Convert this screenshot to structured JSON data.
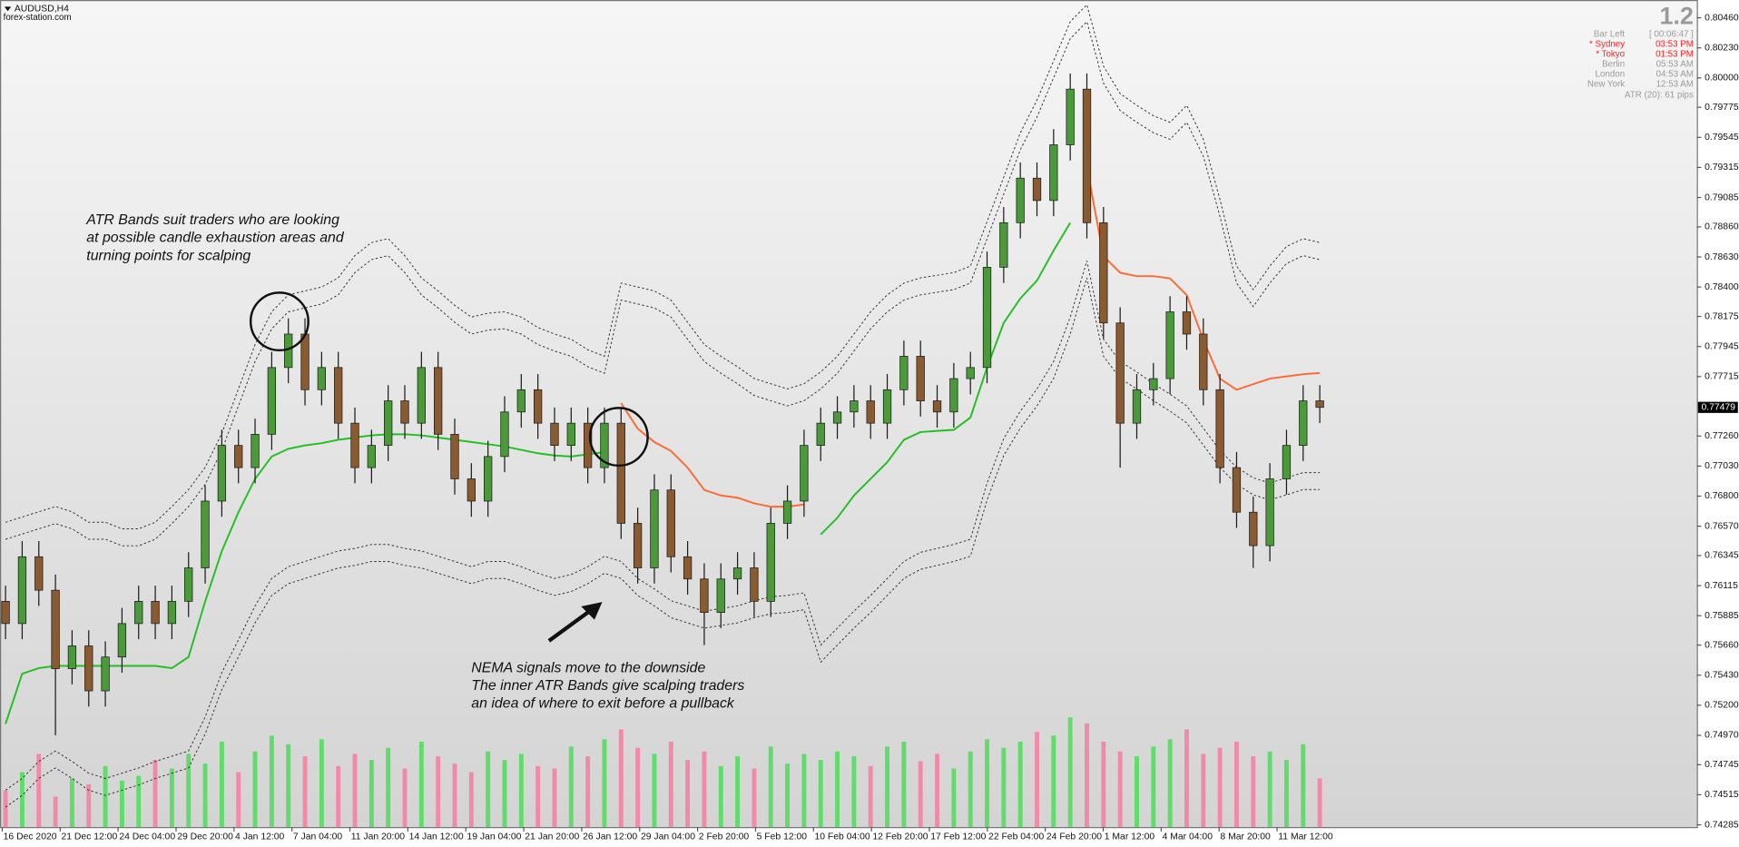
{
  "chart_data": {
    "type": "candlestick",
    "title": "AUDUSD,H4",
    "subtitle": "forex-station.com",
    "x_labels": [
      "16 Dec 2020",
      "21 Dec 12:00",
      "24 Dec 04:00",
      "29 Dec 20:00",
      "4 Jan 12:00",
      "7 Jan 04:00",
      "11 Jan 20:00",
      "14 Jan 12:00",
      "19 Jan 04:00",
      "21 Jan 20:00",
      "26 Jan 12:00",
      "29 Jan 04:00",
      "2 Feb 20:00",
      "5 Feb 12:00",
      "10 Feb 04:00",
      "12 Feb 20:00",
      "17 Feb 12:00",
      "22 Feb 04:00",
      "24 Feb 20:00",
      "1 Mar 12:00",
      "4 Mar 04:00",
      "8 Mar 20:00",
      "11 Mar 12:00"
    ],
    "ylim": [
      0.74268,
      0.80596
    ],
    "yticks": [
      {
        "value": 0.8046,
        "label": "0.80460"
      },
      {
        "value": 0.8023,
        "label": "0.80230"
      },
      {
        "value": 0.8,
        "label": "0.80000"
      },
      0.79775,
      0.79545,
      0.79315,
      0.79085,
      {
        "value": 0.7886,
        "label": "0.78860"
      },
      {
        "value": 0.7863,
        "label": "0.78630"
      },
      {
        "value": 0.784,
        "label": "0.78400"
      },
      0.78175,
      0.77945,
      0.77715,
      {
        "value": 0.7726,
        "label": "0.77260"
      },
      {
        "value": 0.7703,
        "label": "0.77030"
      },
      {
        "value": 0.768,
        "label": "0.76800"
      },
      {
        "value": 0.7657,
        "label": "0.76570"
      },
      0.76345,
      0.76115,
      0.75885,
      {
        "value": 0.7566,
        "label": "0.75660"
      },
      {
        "value": 0.7543,
        "label": "0.75430"
      },
      {
        "value": 0.752,
        "label": "0.75200"
      },
      {
        "value": 0.7497,
        "label": "0.74970"
      },
      0.74745,
      0.74515,
      0.74285
    ],
    "last_price": 0.77479,
    "bull_color": "#4a9a3a",
    "bear_color": "#8a5a30",
    "wick_color": "#1a1a1a",
    "open": [
      0.75995,
      0.75825,
      0.76336,
      0.7608,
      0.7548,
      0.75654,
      0.7531,
      0.75569,
      0.75825,
      0.75995,
      0.75825,
      0.75995,
      0.76251,
      0.76762,
      0.77188,
      0.77018,
      0.77273,
      0.77784,
      0.7804,
      0.77614,
      0.77784,
      0.77358,
      0.77018,
      0.77188,
      0.77529,
      0.77358,
      0.77784,
      0.77273,
      0.76932,
      0.76762,
      0.77103,
      0.77444,
      0.77614,
      0.77358,
      0.77188,
      0.77358,
      0.77018,
      0.77358,
      0.76592,
      0.76251,
      0.76847,
      0.76336,
      0.76166,
      0.7591,
      0.76166,
      0.76251,
      0.75995,
      0.76592,
      0.76762,
      0.77188,
      0.77358,
      0.77444,
      0.77529,
      0.77358,
      0.77614,
      0.7787,
      0.77529,
      0.77444,
      0.77699,
      0.77784,
      0.78551,
      0.78892,
      0.79233,
      0.79062,
      0.79488,
      0.79914,
      0.78892,
      0.78125,
      0.77358,
      0.77614,
      0.77699,
      0.7821,
      0.7804,
      0.77614,
      0.77018,
      0.76677,
      0.76421,
      0.76932,
      0.77188,
      0.77529
    ],
    "high": [
      0.76115,
      0.76456,
      0.76456,
      0.762,
      0.75774,
      0.75774,
      0.75689,
      0.75945,
      0.76115,
      0.76115,
      0.76115,
      0.76371,
      0.76882,
      0.77308,
      0.77308,
      0.77393,
      0.77904,
      0.7816,
      0.7816,
      0.77904,
      0.77904,
      0.77478,
      0.77308,
      0.77649,
      0.77649,
      0.77904,
      0.77904,
      0.77393,
      0.77052,
      0.77223,
      0.77564,
      0.77734,
      0.77734,
      0.77478,
      0.77478,
      0.77478,
      0.77478,
      0.77478,
      0.76712,
      0.76967,
      0.76967,
      0.76456,
      0.76286,
      0.76286,
      0.76371,
      0.76371,
      0.76712,
      0.76882,
      0.77308,
      0.77478,
      0.77564,
      0.77649,
      0.77649,
      0.77734,
      0.7799,
      0.7799,
      0.77649,
      0.77819,
      0.77904,
      0.78671,
      0.79012,
      0.79353,
      0.79353,
      0.79608,
      0.80034,
      0.80034,
      0.79012,
      0.78245,
      0.77734,
      0.77819,
      0.7833,
      0.7833,
      0.7816,
      0.77734,
      0.77138,
      0.76797,
      0.77052,
      0.77308,
      0.77649,
      0.77649
    ],
    "low": [
      0.75705,
      0.75705,
      0.7596,
      0.7497,
      0.7536,
      0.7519,
      0.7519,
      0.75449,
      0.75705,
      0.75705,
      0.75705,
      0.75875,
      0.76131,
      0.76642,
      0.76898,
      0.76898,
      0.77153,
      0.77664,
      0.77494,
      0.77494,
      0.77238,
      0.76898,
      0.76898,
      0.77068,
      0.77238,
      0.77238,
      0.77153,
      0.76812,
      0.76642,
      0.76642,
      0.76983,
      0.77324,
      0.77238,
      0.77068,
      0.77068,
      0.76898,
      0.76898,
      0.76472,
      0.76131,
      0.76131,
      0.76216,
      0.76046,
      0.7566,
      0.7579,
      0.76046,
      0.75875,
      0.75875,
      0.76472,
      0.76642,
      0.77068,
      0.77238,
      0.77324,
      0.77238,
      0.77238,
      0.77494,
      0.77409,
      0.77324,
      0.77324,
      0.77579,
      0.77664,
      0.78431,
      0.78772,
      0.78942,
      0.78942,
      0.79368,
      0.78772,
      0.78005,
      0.77018,
      0.77238,
      0.77494,
      0.77579,
      0.7792,
      0.77494,
      0.76898,
      0.76557,
      0.7625,
      0.76301,
      0.76812,
      0.77068,
      0.77359
    ],
    "close": [
      0.75825,
      0.76336,
      0.7608,
      0.7548,
      0.75654,
      0.7531,
      0.75569,
      0.75825,
      0.75995,
      0.75825,
      0.75995,
      0.76251,
      0.76762,
      0.77188,
      0.77018,
      0.77273,
      0.77784,
      0.7804,
      0.77614,
      0.77784,
      0.77358,
      0.77018,
      0.77188,
      0.77529,
      0.77358,
      0.77784,
      0.77273,
      0.76932,
      0.76762,
      0.77103,
      0.77444,
      0.77614,
      0.77358,
      0.77188,
      0.77358,
      0.77018,
      0.77358,
      0.76592,
      0.76251,
      0.76847,
      0.76336,
      0.76166,
      0.7591,
      0.76166,
      0.76251,
      0.75995,
      0.76592,
      0.76762,
      0.77188,
      0.77358,
      0.77444,
      0.77529,
      0.77358,
      0.77614,
      0.7787,
      0.77529,
      0.77444,
      0.77699,
      0.77784,
      0.78551,
      0.78892,
      0.79233,
      0.79062,
      0.79488,
      0.79914,
      0.78892,
      0.78125,
      0.77358,
      0.77614,
      0.77699,
      0.7821,
      0.7804,
      0.77614,
      0.77018,
      0.76677,
      0.76421,
      0.76932,
      0.77188,
      0.77529,
      0.77479
    ],
    "volume": {
      "ylim": [
        0,
        100
      ],
      "up_color": "#5fdc6a",
      "down_color": "#f08aa8",
      "values": [
        30,
        45,
        60,
        25,
        40,
        35,
        50,
        38,
        42,
        55,
        48,
        60,
        52,
        70,
        45,
        62,
        75,
        68,
        58,
        72,
        50,
        60,
        55,
        65,
        48,
        70,
        58,
        52,
        45,
        62,
        55,
        60,
        50,
        48,
        66,
        58,
        72,
        80,
        65,
        60,
        70,
        55,
        62,
        50,
        58,
        48,
        66,
        52,
        60,
        55,
        62,
        58,
        50,
        66,
        70,
        54,
        60,
        48,
        62,
        72,
        65,
        70,
        78,
        75,
        90,
        85,
        70,
        62,
        58,
        66,
        72,
        80,
        60,
        65,
        70,
        58,
        62,
        55,
        68,
        40
      ]
    },
    "lines": [
      {
        "color": "#22c022",
        "width": 1.6,
        "values": [
          0.75058,
          0.75441,
          0.75484,
          0.75501,
          0.75501,
          0.75501,
          0.75501,
          0.75501,
          0.75501,
          0.75501,
          0.75484,
          0.75569,
          0.75995,
          0.76379,
          0.76677,
          0.76932,
          0.77103,
          0.77162,
          0.77188,
          0.77205,
          0.77231,
          0.77248,
          0.77265,
          0.77273,
          0.77273,
          0.77265,
          0.77248,
          0.77231,
          0.77214,
          0.77197,
          0.7718,
          0.77154,
          0.77128,
          0.77111,
          0.77103,
          0.7712,
          0.77137,
          null,
          null,
          null,
          null,
          null,
          null,
          null,
          null,
          null,
          null,
          null,
          null,
          0.76506,
          0.76634,
          0.76805,
          0.76932,
          0.7706,
          0.77231,
          0.7729,
          0.77299,
          0.77307,
          0.77401,
          0.77784,
          0.78125,
          0.78313,
          0.78449,
          0.78679,
          0.78892,
          null,
          null,
          null,
          null,
          null,
          null,
          null,
          null,
          null,
          null,
          null,
          null,
          null,
          null,
          null
        ]
      },
      {
        "color": "#ff6a33",
        "width": 1.6,
        "values": [
          null,
          null,
          null,
          null,
          null,
          null,
          null,
          null,
          null,
          null,
          null,
          null,
          null,
          null,
          null,
          null,
          null,
          null,
          null,
          null,
          null,
          null,
          null,
          null,
          null,
          null,
          null,
          null,
          null,
          null,
          null,
          null,
          null,
          null,
          null,
          null,
          null,
          0.77512,
          0.77316,
          0.77214,
          0.77145,
          0.77018,
          0.76847,
          0.76805,
          0.76788,
          0.76745,
          0.76719,
          0.76719,
          0.76736,
          null,
          null,
          null,
          null,
          null,
          null,
          null,
          null,
          null,
          null,
          null,
          null,
          null,
          null,
          null,
          null,
          0.79318,
          0.78636,
          0.78509,
          0.78483,
          0.78483,
          0.78466,
          0.78338,
          0.77997,
          0.77699,
          0.77614,
          0.77657,
          0.77699,
          0.77716,
          0.77733,
          0.77742
        ]
      },
      {
        "color": "#333333",
        "width": 0.8,
        "dashed": true,
        "values": [
          0.766,
          0.7664,
          0.7668,
          0.7672,
          0.7668,
          0.766,
          0.766,
          0.7655,
          0.7655,
          0.766,
          0.7672,
          0.7685,
          0.7702,
          0.7728,
          0.7762,
          0.7796,
          0.7821,
          0.7834,
          0.7837,
          0.784,
          0.7847,
          0.7864,
          0.7874,
          0.7877,
          0.7864,
          0.7847,
          0.7837,
          0.7826,
          0.7817,
          0.782,
          0.7821,
          0.7817,
          0.7809,
          0.7804,
          0.78,
          0.7792,
          0.7787,
          0.7843,
          0.784,
          0.7837,
          0.783,
          0.7813,
          0.7796,
          0.7787,
          0.7779,
          0.777,
          0.7766,
          0.7762,
          0.7766,
          0.7775,
          0.7787,
          0.7804,
          0.7821,
          0.7834,
          0.7843,
          0.7847,
          0.7849,
          0.7851,
          0.7856,
          0.789,
          0.7924,
          0.7958,
          0.7983,
          0.8013,
          0.8043,
          0.8056,
          0.8009,
          0.7988,
          0.7979,
          0.7971,
          0.7966,
          0.7979,
          0.7953,
          0.7907,
          0.7856,
          0.7838,
          0.7856,
          0.7871,
          0.7877,
          0.7874
        ]
      },
      {
        "color": "#333333",
        "width": 0.8,
        "dashed": true,
        "values": [
          0.7647,
          0.7651,
          0.7655,
          0.7659,
          0.7655,
          0.7647,
          0.7647,
          0.7642,
          0.7642,
          0.7647,
          0.7659,
          0.7672,
          0.7689,
          0.7715,
          0.7749,
          0.7783,
          0.7808,
          0.7821,
          0.7824,
          0.7827,
          0.7834,
          0.7851,
          0.7861,
          0.7864,
          0.7851,
          0.7834,
          0.7824,
          0.7813,
          0.7804,
          0.7807,
          0.7808,
          0.7804,
          0.7796,
          0.7791,
          0.7787,
          0.7779,
          0.7774,
          0.783,
          0.7827,
          0.7824,
          0.7817,
          0.78,
          0.7783,
          0.7774,
          0.7766,
          0.7757,
          0.7753,
          0.7749,
          0.7753,
          0.7762,
          0.7774,
          0.7791,
          0.7808,
          0.7821,
          0.783,
          0.7834,
          0.7836,
          0.7838,
          0.7843,
          0.7877,
          0.7911,
          0.7945,
          0.797,
          0.8,
          0.803,
          0.8043,
          0.7996,
          0.7975,
          0.7966,
          0.7958,
          0.7953,
          0.7966,
          0.794,
          0.7894,
          0.7843,
          0.7825,
          0.7843,
          0.7858,
          0.7864,
          0.7861
        ]
      },
      {
        "color": "#333333",
        "width": 0.8,
        "dashed": true,
        "values": [
          0.7455,
          0.7464,
          0.7477,
          0.7485,
          0.7477,
          0.7468,
          0.7464,
          0.7468,
          0.7472,
          0.7477,
          0.7481,
          0.7485,
          0.7511,
          0.7545,
          0.757,
          0.7596,
          0.7617,
          0.7626,
          0.763,
          0.7634,
          0.7638,
          0.764,
          0.7643,
          0.7643,
          0.764,
          0.7638,
          0.7634,
          0.763,
          0.7626,
          0.763,
          0.763,
          0.7626,
          0.7621,
          0.7617,
          0.762,
          0.7626,
          0.7634,
          0.763,
          0.7617,
          0.7609,
          0.76,
          0.7596,
          0.7592,
          0.7594,
          0.7596,
          0.76,
          0.7603,
          0.7604,
          0.7606,
          0.7566,
          0.7579,
          0.7592,
          0.7604,
          0.7617,
          0.763,
          0.7637,
          0.764,
          0.7643,
          0.7647,
          0.769,
          0.7724,
          0.7745,
          0.7762,
          0.7783,
          0.7817,
          0.786,
          0.78,
          0.7783,
          0.7775,
          0.7766,
          0.7758,
          0.7749,
          0.7732,
          0.7715,
          0.7702,
          0.7694,
          0.769,
          0.7694,
          0.7698,
          0.7698
        ]
      },
      {
        "color": "#333333",
        "width": 0.8,
        "dashed": true,
        "values": [
          0.7442,
          0.7451,
          0.7464,
          0.7472,
          0.7464,
          0.7455,
          0.7451,
          0.7455,
          0.7459,
          0.7464,
          0.7468,
          0.7472,
          0.7498,
          0.7532,
          0.7557,
          0.7583,
          0.7604,
          0.7613,
          0.7617,
          0.7621,
          0.7625,
          0.7627,
          0.763,
          0.763,
          0.7627,
          0.7625,
          0.7621,
          0.7617,
          0.7613,
          0.7617,
          0.7617,
          0.7613,
          0.7608,
          0.7604,
          0.7607,
          0.7613,
          0.7621,
          0.7617,
          0.7604,
          0.7596,
          0.7587,
          0.7583,
          0.7579,
          0.7581,
          0.7583,
          0.7587,
          0.759,
          0.7591,
          0.7593,
          0.7553,
          0.7566,
          0.7579,
          0.7591,
          0.7604,
          0.7617,
          0.7624,
          0.7627,
          0.763,
          0.7634,
          0.7677,
          0.7711,
          0.7732,
          0.7749,
          0.777,
          0.7804,
          0.7847,
          0.7787,
          0.777,
          0.7762,
          0.7753,
          0.7745,
          0.7736,
          0.7719,
          0.7702,
          0.7689,
          0.7681,
          0.7677,
          0.7681,
          0.7685,
          0.7685
        ]
      }
    ],
    "info_panel": {
      "version": "1.2",
      "rows": [
        {
          "label": "Bar Left",
          "value": "[ 00:06:47 ]",
          "color": "#9a9a9a"
        },
        {
          "label": "* Sydney",
          "value": "03:53 PM",
          "color": "#ff2020"
        },
        {
          "label": "* Tokyo",
          "value": "01:53 PM",
          "color": "#ff2020"
        },
        {
          "label": "Berlin",
          "value": "05:53 AM",
          "color": "#9a9a9a"
        },
        {
          "label": "London",
          "value": "04:53 AM",
          "color": "#9a9a9a"
        },
        {
          "label": "New York",
          "value": "12:53 AM",
          "color": "#9a9a9a"
        }
      ],
      "atr": "ATR (20): 61 pips"
    },
    "annotations": [
      {
        "lines": [
          "ATR Bands suit traders who are looking",
          "at possible candle exhaustion areas and",
          "turning points for scalping"
        ]
      },
      {
        "lines": [
          "NEMA signals move to the downside",
          "The inner ATR Bands give scalping traders",
          "an idea of where to exit before a pullback"
        ]
      }
    ]
  }
}
